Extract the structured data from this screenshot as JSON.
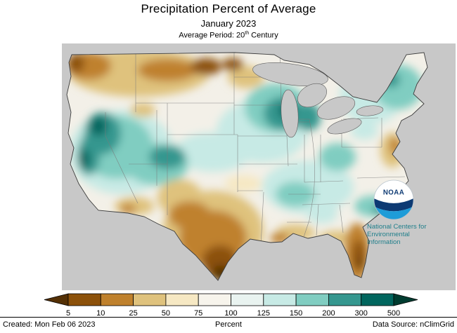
{
  "page": {
    "background": "#ffffff",
    "map_background": "#c8c8c8"
  },
  "header": {
    "title": "Precipitation Percent of Average",
    "subtitle": "January 2023",
    "average_period": {
      "prefix": "Average Period: 20",
      "sup": "th",
      "suffix": " Century"
    }
  },
  "noaa": {
    "logo_label": "NOAA",
    "org_lines": [
      "National Centers for",
      "Environmental",
      "Information"
    ],
    "text_color": "#217f8b"
  },
  "footer": {
    "created": "Created: Mon Feb 06 2023",
    "unit": "Percent",
    "source": "Data Source: nClimGrid"
  },
  "chart_data": {
    "type": "choropleth-map",
    "title": "Precipitation Percent of Average",
    "period": "January 2023",
    "average_period": "20th Century",
    "unit": "Percent",
    "region": "Contiguous United States",
    "legend": {
      "label_ticks": [
        5,
        10,
        25,
        50,
        75,
        100,
        125,
        150,
        200,
        300,
        500
      ],
      "bin_colors": [
        "#543005",
        "#8c510a",
        "#bf812d",
        "#dfc27d",
        "#f6e8c3",
        "#f7f4ec",
        "#e9f3f0",
        "#c7eae5",
        "#80cdc1",
        "#35978f",
        "#01665e",
        "#003c30"
      ],
      "open_ended_low": true,
      "open_ended_high": true,
      "position": "bottom"
    },
    "patterns": {
      "above_average_wettest": [
        "central California",
        "Nevada",
        "Utah",
        "western Colorado",
        "Wisconsin",
        "northern Michigan",
        "Vermont and New Hampshire"
      ],
      "above_average": [
        "Great Basin",
        "Rocky Mountains",
        "central Plains",
        "upper Midwest and Great Lakes",
        "Ohio and Tennessee valleys",
        "New England",
        "Georgia-South Carolina border"
      ],
      "below_average_driest": [
        "western Washington",
        "Montana",
        "North Dakota border area",
        "southern Texas",
        "Florida peninsula",
        "Delmarva coast"
      ],
      "below_average": [
        "Pacific Northwest",
        "northern Rockies",
        "Oklahoma",
        "southern Arizona",
        "New Mexico",
        "Texas",
        "central Gulf Coast",
        "Mid-Atlantic coast"
      ],
      "near_average": [
        "Idaho",
        "interior Dakotas",
        "Missouri",
        "Carolinas",
        "New York"
      ]
    }
  }
}
